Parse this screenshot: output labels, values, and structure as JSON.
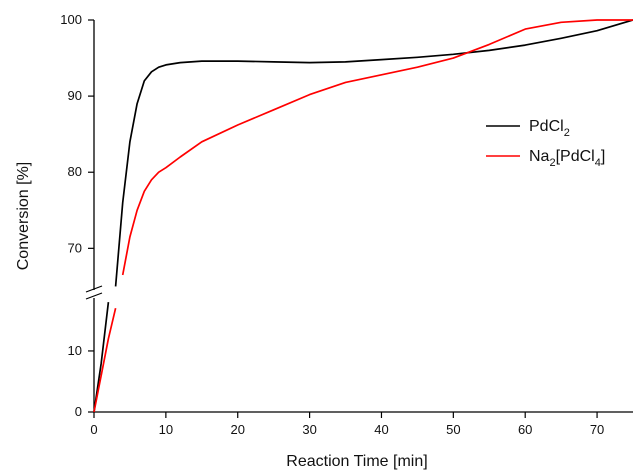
{
  "chart_data": {
    "type": "line",
    "xlabel": "Reaction Time [min]",
    "ylabel": "Conversion [%]",
    "xlim": [
      0,
      75
    ],
    "y_axis_break": {
      "lower_segment": [
        0,
        19
      ],
      "upper_segment": [
        64,
        100
      ]
    },
    "x_ticks": [
      0,
      10,
      20,
      30,
      40,
      50,
      60,
      70
    ],
    "y_ticks_lower": [
      0,
      10
    ],
    "y_ticks_upper": [
      70,
      80,
      90,
      100
    ],
    "legend_position": "right",
    "grid": false,
    "series": [
      {
        "name_parts": {
          "base": "PdCl",
          "sub": "2"
        },
        "color": "#000000",
        "x": [
          0,
          1,
          2,
          3,
          4,
          5,
          6,
          7,
          8,
          9,
          10,
          12,
          15,
          20,
          25,
          30,
          35,
          40,
          45,
          50,
          55,
          60,
          65,
          70,
          75
        ],
        "y": [
          0,
          8,
          18,
          65,
          76,
          84,
          89,
          92,
          93.2,
          93.8,
          94.1,
          94.4,
          94.6,
          94.6,
          94.5,
          94.4,
          94.5,
          94.8,
          95.1,
          95.5,
          96.0,
          96.7,
          97.6,
          98.6,
          100
        ]
      },
      {
        "name_parts": {
          "base1": "Na",
          "sub1": "2",
          "mid": "[PdCl",
          "sub2": "4",
          "tail": "]"
        },
        "color": "#ff0000",
        "x": [
          0,
          1,
          2,
          3,
          4,
          5,
          6,
          7,
          8,
          9,
          10,
          12,
          15,
          20,
          25,
          30,
          35,
          40,
          45,
          50,
          55,
          60,
          65,
          70,
          75
        ],
        "y": [
          0,
          6,
          12,
          17,
          66.5,
          71.5,
          75,
          77.5,
          79,
          80,
          80.6,
          82,
          84,
          86.2,
          88.2,
          90.2,
          91.8,
          92.8,
          93.8,
          95,
          96.8,
          98.8,
          99.7,
          100,
          100
        ]
      }
    ]
  }
}
